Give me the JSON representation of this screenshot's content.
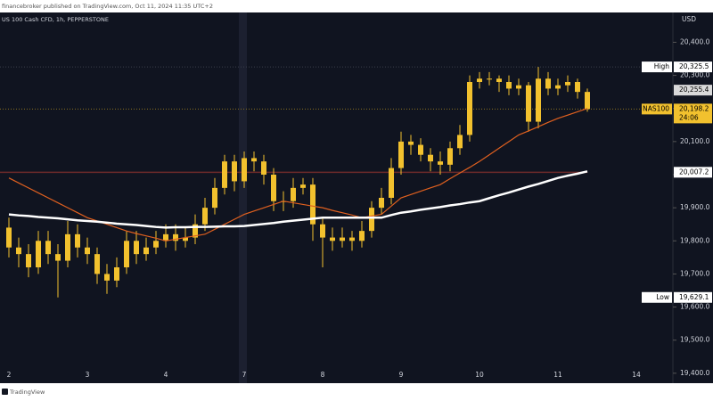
{
  "header": {
    "text": "financebroker published on TradingView.com, Oct 11, 2024 11:35 UTC+2"
  },
  "footer": {
    "text": "TradingView"
  },
  "chart_data": {
    "type": "candlestick",
    "title": "US 100 Cash CFD, 1h, PEPPERSTONE",
    "currency": "USD",
    "up_color": "#f2c12e",
    "down_color": "#f2c12e",
    "categories": [
      "2",
      null,
      null,
      null,
      null,
      null,
      null,
      null,
      "3",
      null,
      null,
      null,
      null,
      null,
      null,
      null,
      "4",
      null,
      null,
      null,
      null,
      null,
      null,
      null,
      "7",
      null,
      null,
      null,
      null,
      null,
      null,
      null,
      "8",
      null,
      null,
      null,
      null,
      null,
      null,
      null,
      "9",
      null,
      null,
      null,
      null,
      null,
      null,
      null,
      "10",
      null,
      null,
      null,
      null,
      null,
      null,
      null,
      "11",
      null,
      null,
      null,
      null,
      null,
      null,
      null,
      "14"
    ],
    "open": [
      19840,
      19780,
      19760,
      19720,
      19800,
      19760,
      19740,
      19820,
      19780,
      19760,
      19700,
      19680,
      19720,
      19800,
      19760,
      19780,
      19800,
      19820,
      19800,
      19810,
      19850,
      19900,
      19960,
      20040,
      19980,
      20050,
      20040,
      20000,
      19920,
      19920,
      19960,
      19970,
      19850,
      19810,
      19800,
      19810,
      19800,
      19830,
      19900,
      19930,
      20020,
      20100,
      20090,
      20060,
      20040,
      20030,
      20080,
      20120,
      20280,
      20290,
      20290,
      20280,
      20260,
      20270,
      20160,
      20290,
      20260,
      20270,
      20280,
      20250,
      null,
      null,
      null,
      null,
      null
    ],
    "high": [
      19870,
      19810,
      19790,
      19830,
      19830,
      19790,
      19860,
      19850,
      19810,
      19780,
      19730,
      19750,
      19830,
      19830,
      19810,
      19830,
      19850,
      19850,
      19840,
      19880,
      19930,
      19990,
      20060,
      20060,
      20070,
      20070,
      20060,
      20020,
      19950,
      19990,
      19990,
      19990,
      19870,
      19840,
      19840,
      19830,
      19860,
      19920,
      19960,
      20050,
      20130,
      20120,
      20110,
      20080,
      20070,
      20100,
      20150,
      20300,
      20310,
      20310,
      20300,
      20300,
      20290,
      20280,
      20325.5,
      20310,
      20290,
      20300,
      20290,
      20260,
      null,
      null,
      null,
      null,
      null
    ],
    "low": [
      19750,
      19720,
      19690,
      19700,
      19730,
      19629.1,
      19720,
      19750,
      19730,
      19670,
      19640,
      19660,
      19700,
      19730,
      19740,
      19760,
      19780,
      19770,
      19780,
      19790,
      19830,
      19880,
      19940,
      19950,
      19960,
      20010,
      19970,
      19890,
      19890,
      19900,
      19940,
      19800,
      19720,
      19770,
      19780,
      19770,
      19780,
      19810,
      19880,
      19910,
      20000,
      20060,
      20040,
      20010,
      20000,
      20010,
      20060,
      20100,
      20260,
      20270,
      20250,
      20240,
      20240,
      20130,
      20140,
      20240,
      20240,
      20250,
      20230,
      20190,
      null,
      null,
      null,
      null,
      null
    ],
    "close": [
      19780,
      19760,
      19720,
      19800,
      19760,
      19740,
      19820,
      19780,
      19760,
      19700,
      19680,
      19720,
      19800,
      19760,
      19780,
      19800,
      19820,
      19800,
      19810,
      19850,
      19900,
      19960,
      20040,
      19980,
      20050,
      20040,
      20000,
      19920,
      19920,
      19960,
      19970,
      19850,
      19810,
      19800,
      19810,
      19800,
      19830,
      19900,
      19930,
      20020,
      20100,
      20090,
      20060,
      20040,
      20030,
      20080,
      20120,
      20280,
      20290,
      20290,
      20280,
      20260,
      20270,
      20160,
      20290,
      20260,
      20270,
      20280,
      20250,
      20198.2,
      null,
      null,
      null,
      null,
      null
    ],
    "series": [
      {
        "color": "#e0601f",
        "values": [
          19990,
          19975,
          19960,
          19945,
          19930,
          19915,
          19900,
          19885,
          19870,
          19860,
          19850,
          19840,
          19830,
          19822,
          19815,
          19808,
          19800,
          19805,
          19810,
          19815,
          19820,
          19835,
          19850,
          19865,
          19880,
          19890,
          19900,
          19910,
          19920,
          19915,
          19910,
          19905,
          19900,
          19892,
          19885,
          19878,
          19870,
          19875,
          19880,
          19905,
          19930,
          19940,
          19950,
          19960,
          19970,
          19988,
          20005,
          20022,
          20040,
          20060,
          20080,
          20100,
          20120,
          20132,
          20145,
          20158,
          20170,
          20180,
          20190,
          20200,
          null,
          null,
          null,
          null,
          null
        ]
      },
      {
        "color": "#ffffff",
        "values": [
          19880,
          19877,
          19875,
          19872,
          19870,
          19868,
          19865,
          19862,
          19860,
          19858,
          19855,
          19852,
          19850,
          19848,
          19845,
          19842,
          19840,
          19841,
          19841,
          19842,
          19842,
          19843,
          19844,
          19844,
          19845,
          19848,
          19851,
          19854,
          19858,
          19861,
          19864,
          19867,
          19870,
          19870,
          19870,
          19870,
          19870,
          19870,
          19870,
          19878,
          19885,
          19889,
          19894,
          19898,
          19902,
          19907,
          19911,
          19916,
          19920,
          19929,
          19938,
          19946,
          19955,
          19964,
          19972,
          19981,
          19990,
          19997,
          20003,
          20010,
          null,
          null,
          null,
          null,
          null
        ]
      }
    ],
    "ylim": [
      19370,
      20490
    ],
    "yticks": [
      {
        "value": 19400,
        "label": "19,400.0"
      },
      {
        "value": 19500,
        "label": "19,500.0"
      },
      {
        "value": 19600,
        "label": "19,600.0"
      },
      {
        "value": 19700,
        "label": "19,700.0"
      },
      {
        "value": 19800,
        "label": "19,800.0"
      },
      {
        "value": 19900,
        "label": "19,900.0"
      },
      {
        "value": 20000,
        "label": "20,000.0"
      },
      {
        "value": 20100,
        "label": "20,100.0"
      },
      {
        "value": 20200,
        "label": "20,200.0"
      },
      {
        "value": 20300,
        "label": "20,300.0"
      },
      {
        "value": 20400,
        "label": "20,400.0"
      }
    ],
    "price_tags": [
      {
        "name": "High",
        "value": 20325.5,
        "value_label": "20,325.5",
        "color": "#ffffff"
      },
      {
        "value": 20255.4,
        "value_label": "20,255.4",
        "color": "#d9d9d9"
      },
      {
        "name": "NAS100",
        "value": 20198.2,
        "value_label": "20,198.2",
        "countdown": "24:06",
        "color": "#f2c12e"
      },
      {
        "value": 20007.2,
        "value_label": "20,007.2",
        "color": "#ffffff"
      },
      {
        "name": "Low",
        "value": 19629.1,
        "value_label": "19,629.1",
        "color": "#ffffff"
      }
    ]
  }
}
